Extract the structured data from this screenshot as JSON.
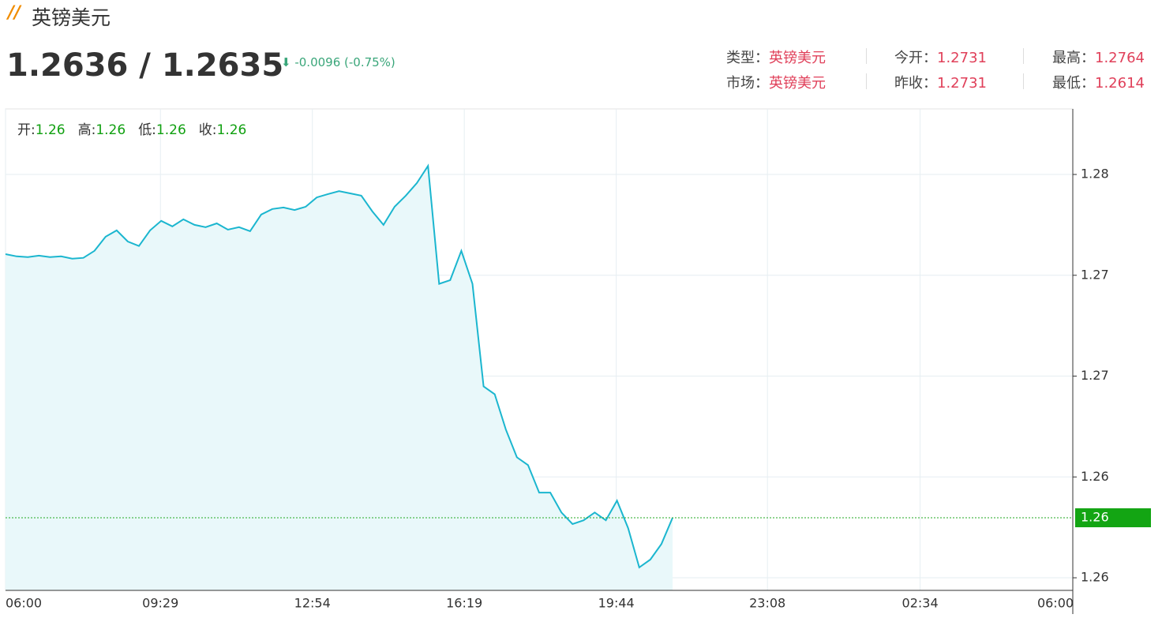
{
  "header": {
    "logo": "//",
    "title": "英镑美元",
    "price": "1.2636 / 1.2635",
    "change": "-0.0096 (-0.75%)",
    "info": [
      [
        {
          "label": "类型：",
          "value": "英镑美元"
        },
        {
          "label": "今开：",
          "value": "1.2731"
        },
        {
          "label": "最高：",
          "value": "1.2764"
        }
      ],
      [
        {
          "label": "市场：",
          "value": "英镑美元"
        },
        {
          "label": "昨收：",
          "value": "1.2731"
        },
        {
          "label": "最低：",
          "value": "1.2614"
        }
      ]
    ]
  },
  "ohlc": [
    {
      "label": "开:",
      "value": "1.26"
    },
    {
      "label": "高:",
      "value": "1.26"
    },
    {
      "label": "低:",
      "value": "1.26"
    },
    {
      "label": "收:",
      "value": "1.26"
    }
  ],
  "chart_data": {
    "type": "area",
    "x": [
      "06:00",
      "06:15",
      "06:30",
      "06:45",
      "07:00",
      "07:15",
      "07:30",
      "07:45",
      "08:00",
      "08:15",
      "08:30",
      "08:45",
      "09:00",
      "09:15",
      "09:30",
      "09:45",
      "10:00",
      "10:15",
      "10:30",
      "10:45",
      "11:00",
      "11:15",
      "11:30",
      "11:45",
      "12:00",
      "12:15",
      "12:30",
      "12:45",
      "13:00",
      "13:15",
      "13:30",
      "13:45",
      "14:00",
      "14:15",
      "14:30",
      "14:45",
      "15:00",
      "15:15",
      "15:30",
      "15:45",
      "16:00",
      "16:15",
      "16:30",
      "16:45",
      "17:00",
      "17:15",
      "17:30",
      "17:45",
      "18:00",
      "18:15",
      "18:30",
      "18:45",
      "19:00",
      "19:15",
      "19:30",
      "19:45",
      "20:00",
      "20:15",
      "20:30",
      "20:45",
      "21:00"
    ],
    "series": [
      {
        "name": "英镑美元",
        "color": "#1bb6cf",
        "values": [
          1.27284,
          1.27275,
          1.27272,
          1.27278,
          1.27272,
          1.27275,
          1.27266,
          1.27269,
          1.27297,
          1.27353,
          1.27378,
          1.27334,
          1.27316,
          1.27378,
          1.27416,
          1.27394,
          1.27422,
          1.274,
          1.27391,
          1.27406,
          1.27381,
          1.27391,
          1.27375,
          1.27441,
          1.27463,
          1.27469,
          1.27459,
          1.27472,
          1.27509,
          1.27522,
          1.27534,
          1.27525,
          1.27516,
          1.27453,
          1.274,
          1.27472,
          1.27516,
          1.27566,
          1.27634,
          1.27166,
          1.27181,
          1.27297,
          1.27166,
          1.26759,
          1.26728,
          1.26588,
          1.26478,
          1.26447,
          1.26338,
          1.26338,
          1.26259,
          1.26213,
          1.26228,
          1.26259,
          1.26228,
          1.26306,
          1.26197,
          1.26041,
          1.26072,
          1.26134,
          1.26238
        ]
      }
    ],
    "last_value_label": "1.26",
    "xticks": [
      "06:00",
      "09:29",
      "12:54",
      "16:19",
      "19:44",
      "23:08",
      "02:34",
      "06:00"
    ],
    "ylim": [
      1.2595,
      1.2786
    ],
    "yticks": [
      {
        "value": 1.276,
        "label": "1.28"
      },
      {
        "value": 1.272,
        "label": "1.27"
      },
      {
        "value": 1.268,
        "label": "1.27"
      },
      {
        "value": 1.264,
        "label": "1.26"
      },
      {
        "value": 1.26,
        "label": "1.26"
      }
    ],
    "grid": true
  }
}
